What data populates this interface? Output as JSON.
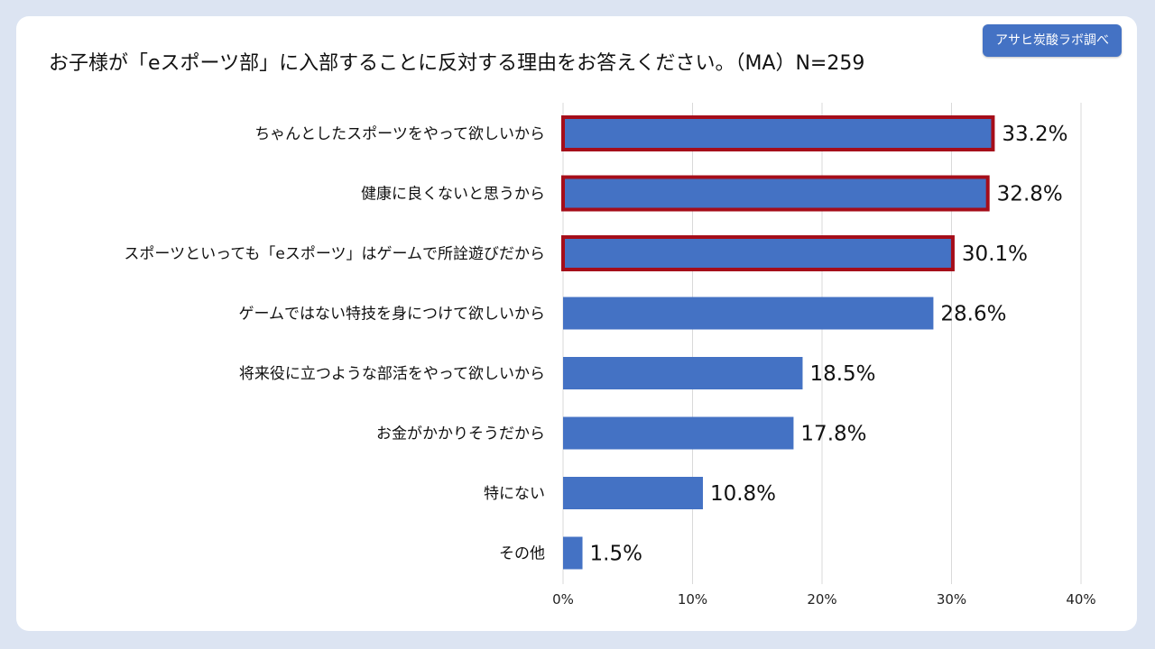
{
  "title": "お子様が「eスポーツ部」に入部することに反対する理由をお答えください。（MA）N=259",
  "badge": "アサヒ炭酸ラボ調べ",
  "colors": {
    "bar": "#4472c4",
    "highlight_border": "#a50d1a",
    "background": "#dce4f2"
  },
  "chart_data": {
    "type": "bar",
    "orientation": "horizontal",
    "title": "お子様が「eスポーツ部」に入部することに反対する理由をお答えください。（MA）N=259",
    "categories": [
      "ちゃんとしたスポーツをやって欲しいから",
      "健康に良くないと思うから",
      "スポーツといっても「eスポーツ」はゲームで所詮遊びだから",
      "ゲームではない特技を身につけて欲しいから",
      "将来役に立つような部活をやって欲しいから",
      "お金がかかりそうだから",
      "特にない",
      "その他"
    ],
    "values": [
      33.2,
      32.8,
      30.1,
      28.6,
      18.5,
      17.8,
      10.8,
      1.5
    ],
    "value_labels": [
      "33.2%",
      "32.8%",
      "30.1%",
      "28.6%",
      "18.5%",
      "17.8%",
      "10.8%",
      "1.5%"
    ],
    "highlighted": [
      true,
      true,
      true,
      false,
      false,
      false,
      false,
      false
    ],
    "xlim": [
      0,
      40
    ],
    "xticks": [
      0,
      10,
      20,
      30,
      40
    ],
    "xtick_labels": [
      "0%",
      "10%",
      "20%",
      "30%",
      "40%"
    ],
    "grid": true,
    "xlabel": "",
    "ylabel": ""
  }
}
